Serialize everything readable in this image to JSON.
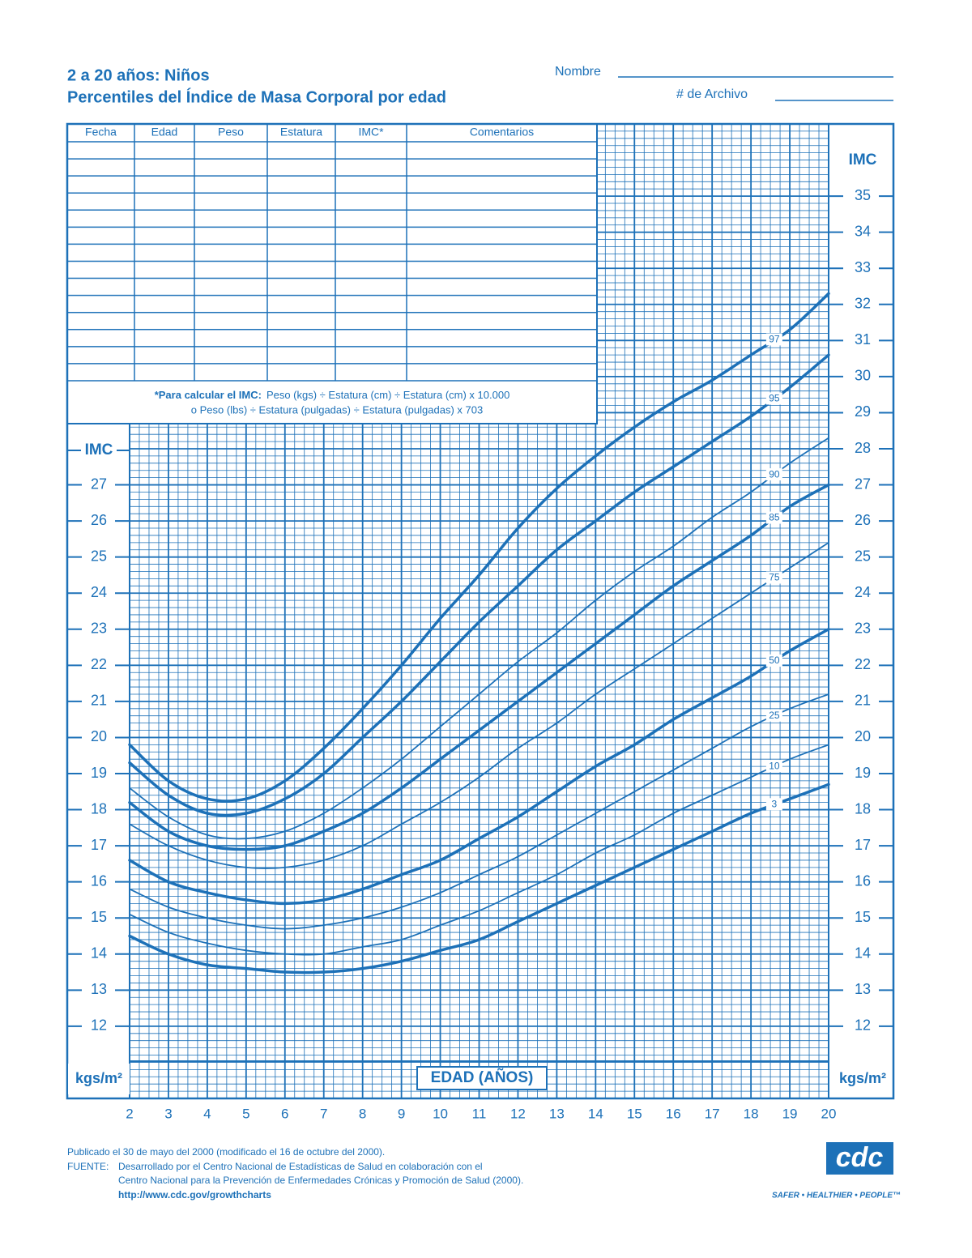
{
  "header": {
    "title": "2 a 20 años: Niños",
    "subtitle": "Percentiles del Índice de Masa Corporal por edad",
    "name_label": "Nombre",
    "file_label": "# de Archivo"
  },
  "form": {
    "columns": [
      "Fecha",
      "Edad",
      "Peso",
      "Estatura",
      "IMC*",
      "Comentarios"
    ],
    "formula_bold": "*Para calcular el IMC:",
    "formula_line1": "Peso (kgs) ÷ Estatura (cm) ÷ Estatura (cm) x 10.000",
    "formula_line2": "o Peso (lbs) ÷ Estatura (pulgadas) ÷ Estatura (pulgadas) x 703"
  },
  "chart_data": {
    "type": "line",
    "y_label": "IMC",
    "unit_label": "kgs/m²",
    "x_label": "EDAD (AÑOS)",
    "color": "#1d71b8",
    "x": [
      2,
      3,
      4,
      5,
      6,
      7,
      8,
      9,
      10,
      11,
      12,
      13,
      14,
      15,
      16,
      17,
      18,
      19,
      20
    ],
    "xlim": [
      2,
      20
    ],
    "xticks": [
      2,
      3,
      4,
      5,
      6,
      7,
      8,
      9,
      10,
      11,
      12,
      13,
      14,
      15,
      16,
      17,
      18,
      19,
      20
    ],
    "ylim": [
      10,
      37
    ],
    "yticks": [
      12,
      13,
      14,
      15,
      16,
      17,
      18,
      19,
      20,
      21,
      22,
      23,
      24,
      25,
      26,
      27,
      28,
      29,
      30,
      31,
      32,
      33,
      34,
      35
    ],
    "grid": true,
    "series": [
      {
        "name": "97",
        "linewidth": 3.5,
        "values": [
          19.8,
          18.8,
          18.3,
          18.3,
          18.8,
          19.7,
          20.8,
          22.0,
          23.3,
          24.5,
          25.8,
          26.9,
          27.8,
          28.6,
          29.3,
          29.9,
          30.6,
          31.3,
          32.3
        ]
      },
      {
        "name": "95",
        "linewidth": 3.5,
        "values": [
          19.3,
          18.4,
          17.9,
          17.9,
          18.3,
          19.0,
          20.0,
          21.0,
          22.1,
          23.2,
          24.2,
          25.2,
          26.0,
          26.8,
          27.5,
          28.2,
          28.9,
          29.7,
          30.6
        ]
      },
      {
        "name": "90",
        "linewidth": 1.8,
        "values": [
          18.6,
          17.8,
          17.3,
          17.2,
          17.4,
          17.9,
          18.6,
          19.4,
          20.3,
          21.2,
          22.1,
          22.9,
          23.8,
          24.6,
          25.3,
          26.1,
          26.8,
          27.6,
          28.3
        ]
      },
      {
        "name": "85",
        "linewidth": 3.5,
        "values": [
          18.2,
          17.4,
          17.0,
          16.9,
          17.0,
          17.4,
          17.9,
          18.6,
          19.4,
          20.2,
          21.0,
          21.8,
          22.6,
          23.4,
          24.2,
          24.9,
          25.6,
          26.4,
          27.0
        ]
      },
      {
        "name": "75",
        "linewidth": 1.8,
        "values": [
          17.6,
          17.0,
          16.6,
          16.4,
          16.4,
          16.6,
          17.0,
          17.6,
          18.2,
          18.9,
          19.7,
          20.4,
          21.2,
          21.9,
          22.6,
          23.3,
          24.0,
          24.7,
          25.4
        ]
      },
      {
        "name": "50",
        "linewidth": 3.5,
        "values": [
          16.6,
          16.0,
          15.7,
          15.5,
          15.4,
          15.5,
          15.8,
          16.2,
          16.6,
          17.2,
          17.8,
          18.5,
          19.2,
          19.8,
          20.5,
          21.1,
          21.7,
          22.4,
          23.0
        ]
      },
      {
        "name": "25",
        "linewidth": 1.8,
        "values": [
          15.8,
          15.3,
          15.0,
          14.8,
          14.7,
          14.8,
          15.0,
          15.3,
          15.7,
          16.2,
          16.7,
          17.3,
          17.9,
          18.5,
          19.1,
          19.7,
          20.3,
          20.8,
          21.2
        ]
      },
      {
        "name": "10",
        "linewidth": 1.8,
        "values": [
          15.1,
          14.6,
          14.3,
          14.1,
          14.0,
          14.0,
          14.2,
          14.4,
          14.8,
          15.2,
          15.7,
          16.2,
          16.8,
          17.3,
          17.9,
          18.4,
          18.9,
          19.4,
          19.8
        ]
      },
      {
        "name": "3",
        "linewidth": 3.5,
        "values": [
          14.5,
          14.0,
          13.7,
          13.6,
          13.5,
          13.5,
          13.6,
          13.8,
          14.1,
          14.4,
          14.9,
          15.4,
          15.9,
          16.4,
          16.9,
          17.4,
          17.9,
          18.3,
          18.7
        ]
      }
    ]
  },
  "footer": {
    "published": "Publicado el 30 de mayo del 2000 (modificado el 16 de octubre del 2000).",
    "source_label": "FUENTE:",
    "source_line1": "Desarrollado por el Centro Nacional de Estadísticas de Salud en colaboración con el",
    "source_line2": "Centro Nacional para la Prevención de Enfermedades Crónicas y Promoción de Salud (2000).",
    "url": "http://www.cdc.gov/growthcharts",
    "logo": "cdc",
    "slogan": "SAFER • HEALTHIER • PEOPLE™"
  }
}
